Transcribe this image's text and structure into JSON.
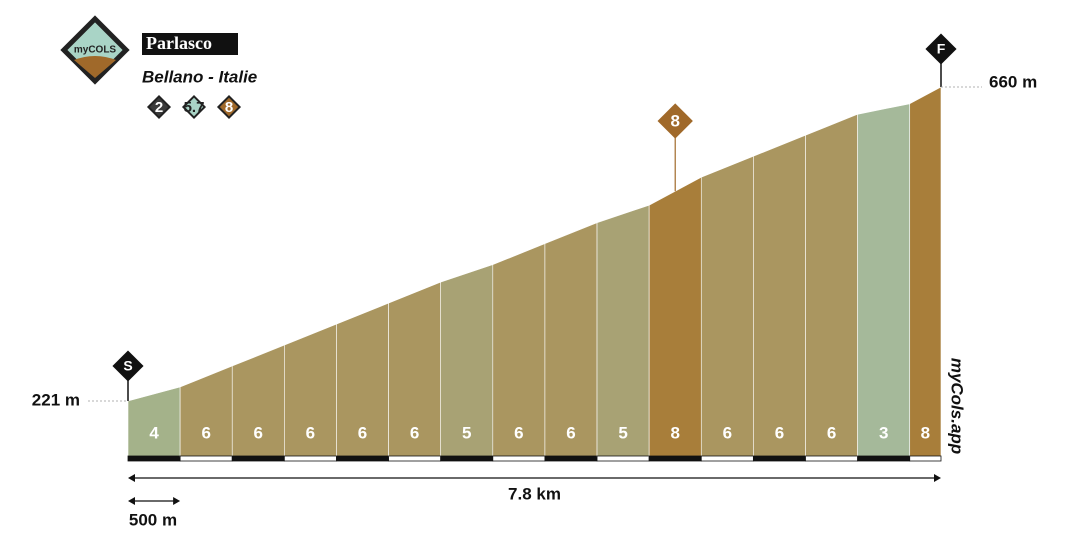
{
  "chart_data": {
    "type": "profile",
    "title": "Parlasco",
    "subtitle": "Bellano - Italie",
    "logo": "myCOLS",
    "badges": [
      2,
      5.7,
      8
    ],
    "badge_colors": [
      "#3a3a3a",
      "#a9d4c6",
      "#a0692a"
    ],
    "values": [
      4,
      6,
      6,
      6,
      6,
      6,
      5,
      6,
      6,
      5,
      8,
      6,
      6,
      6,
      3,
      8
    ],
    "colors": [
      "#a4b28a",
      "#aa9660",
      "#aa9660",
      "#aa9660",
      "#aa9660",
      "#aa9660",
      "#a8a274",
      "#aa9660",
      "#aa9660",
      "#a8a274",
      "#a87e3a",
      "#aa9660",
      "#aa9660",
      "#aa9660",
      "#a5b99a",
      "#a87e3a"
    ],
    "start_label": "S",
    "finish_label": "F",
    "start": {
      "value": 221,
      "label": "221 m"
    },
    "finish": {
      "value": 660,
      "label": "660 m"
    },
    "distance": {
      "value": 7.8,
      "label": "7.8 km"
    },
    "scale": {
      "value": 500,
      "label": "500 m"
    },
    "max_marker": 8,
    "brand": "myCols.app"
  }
}
